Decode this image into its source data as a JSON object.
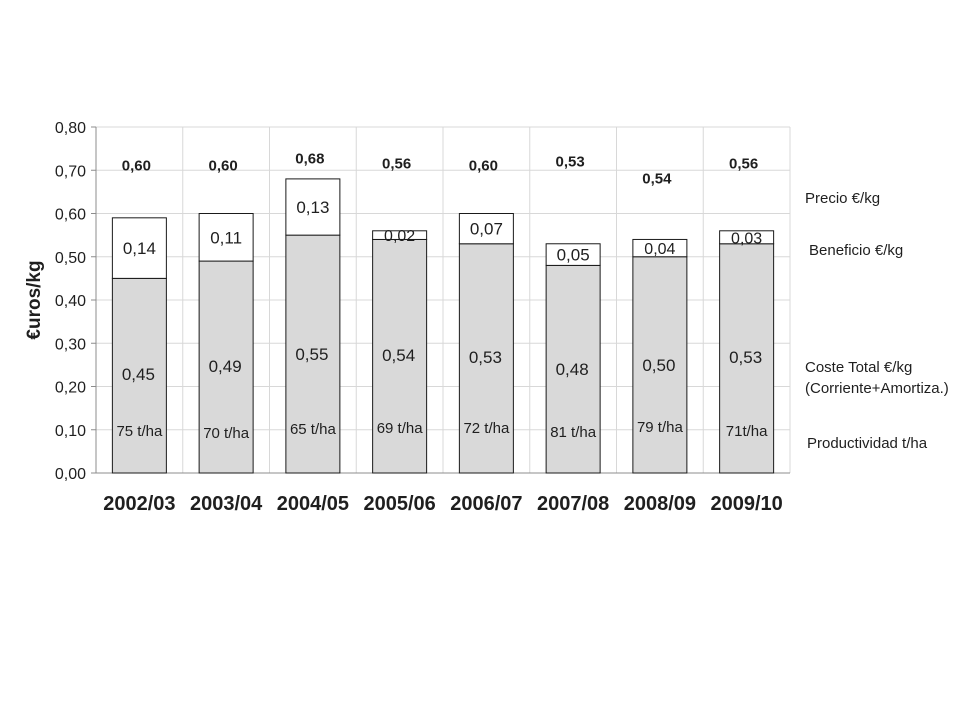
{
  "chart_data": {
    "type": "bar",
    "stacked": true,
    "ylabel": "€uros/kg",
    "ylim": [
      0,
      0.8
    ],
    "y_ticks": [
      "0,00",
      "0,10",
      "0,20",
      "0,30",
      "0,40",
      "0,50",
      "0,60",
      "0,70",
      "0,80"
    ],
    "grid": true,
    "categories": [
      "2002/03",
      "2003/04",
      "2004/05",
      "2005/06",
      "2006/07",
      "2007/08",
      "2008/09",
      "2009/10"
    ],
    "series": [
      {
        "name": "Coste Total €/kg (Corriente+Amortiza.)",
        "values": [
          0.45,
          0.49,
          0.55,
          0.54,
          0.53,
          0.48,
          0.5,
          0.53
        ],
        "labels": [
          "0,45",
          "0,49",
          "0,55",
          "0,54",
          "0,53",
          "0,48",
          "0,50",
          "0,53"
        ],
        "color": "#d9d9d9"
      },
      {
        "name": "Beneficio €/kg",
        "values": [
          0.14,
          0.11,
          0.13,
          0.02,
          0.07,
          0.05,
          0.04,
          0.03
        ],
        "labels": [
          "0,14",
          "0,11",
          "0,13",
          "0,02",
          "0,07",
          "0,05",
          "0,04",
          "0,03"
        ],
        "color": "#ffffff"
      }
    ],
    "precio": {
      "name": "Precio €/kg",
      "values": [
        0.6,
        0.6,
        0.68,
        0.56,
        0.6,
        0.53,
        0.54,
        0.56
      ],
      "labels": [
        "0,60",
        "0,60",
        "0,68",
        "0,56",
        "0,60",
        "0,53",
        "0,54",
        "0,56"
      ]
    },
    "productividad": {
      "name": "Productividad t/ha",
      "values": [
        75,
        70,
        65,
        69,
        72,
        81,
        79,
        71
      ],
      "labels": [
        "75 t/ha",
        "70 t/ha",
        "65 t/ha",
        "69 t/ha",
        "72 t/ha",
        "81 t/ha",
        "79 t/ha",
        "71t/ha"
      ]
    },
    "legend": {
      "precio": "Precio €/kg",
      "beneficio": "Beneficio €/kg",
      "coste_line1": "Coste Total €/kg",
      "coste_line2": "(Corriente+Amortiza.)",
      "productividad": "Productividad t/ha"
    }
  }
}
